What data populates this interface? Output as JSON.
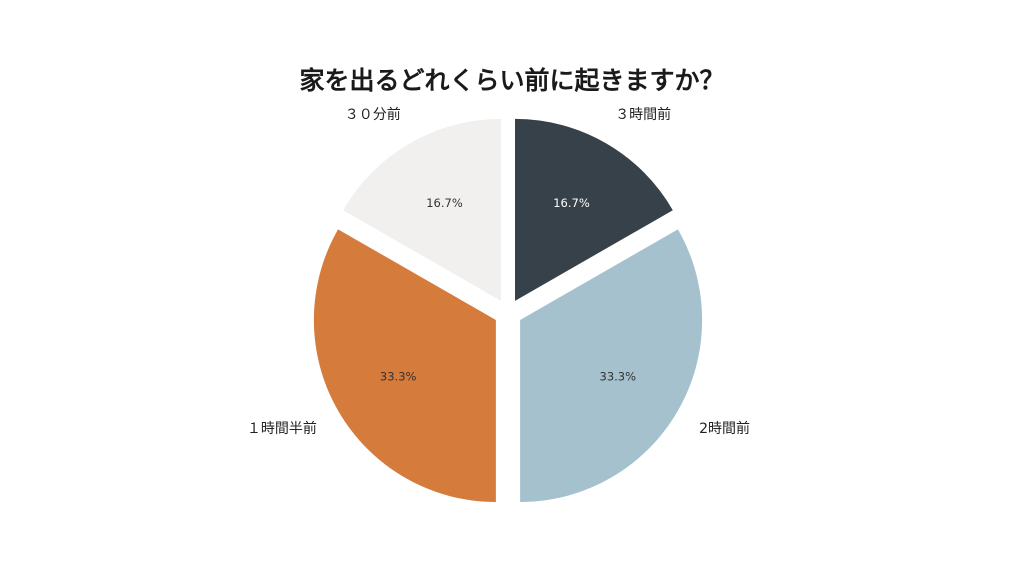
{
  "chart_data": {
    "type": "pie",
    "title": "家を出るどれくらい前に起きますか？",
    "start_angle_deg": 0,
    "direction": "clockwise",
    "exploded": true,
    "slices": [
      {
        "label": "３時間前",
        "value": 16.7,
        "percent_label": "16.7%",
        "color": "#37414a",
        "text_color": "#ffffff"
      },
      {
        "label": "2時間前",
        "value": 33.3,
        "percent_label": "33.3%",
        "color": "#a5c1cd",
        "text_color": "#333333"
      },
      {
        "label": "１時間半前",
        "value": 33.3,
        "percent_label": "33.3%",
        "color": "#d57b3c",
        "text_color": "#333333"
      },
      {
        "label": "３０分前",
        "value": 16.7,
        "percent_label": "16.7%",
        "color": "#f1f0ee",
        "text_color": "#333333"
      }
    ]
  }
}
